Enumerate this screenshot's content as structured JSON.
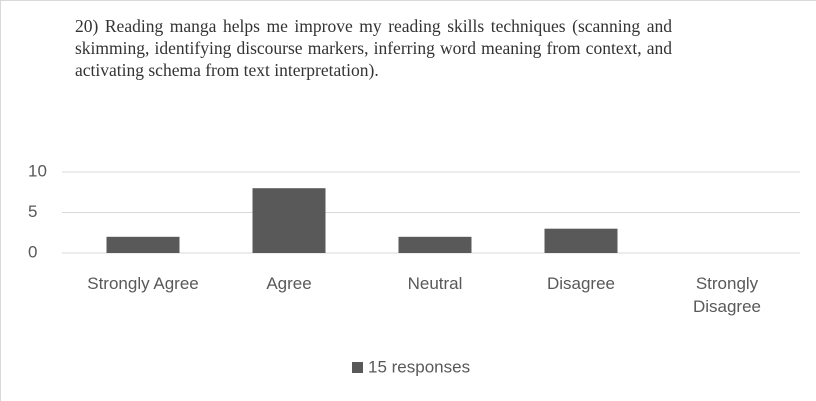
{
  "chart_data": {
    "type": "bar",
    "title": "20) Reading manga helps me improve my reading skills techniques  (scanning and skimming, identifying discourse markers, inferring word meaning from context, and activating schema from text interpretation).",
    "categories": [
      "Strongly Agree",
      "Agree",
      "Neutral",
      "Disagree",
      "Strongly Disagree"
    ],
    "series": [
      {
        "name": "15 responses",
        "color": "#595959",
        "values": [
          2,
          8,
          2,
          3,
          0
        ]
      }
    ],
    "ylim": [
      0,
      10
    ],
    "yticks": [
      0,
      5,
      10
    ],
    "grid": true,
    "legend": "bottom"
  }
}
